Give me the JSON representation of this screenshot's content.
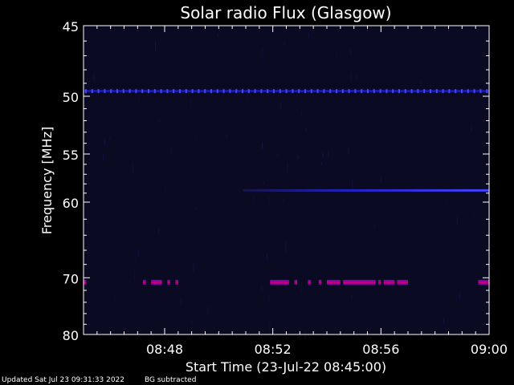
{
  "chart_data": {
    "type": "heatmap",
    "title": "Solar radio Flux (Glasgow)",
    "xlabel": "Start Time (23-Jul-22 08:45:00)",
    "ylabel": "Frequency [MHz]",
    "x_tick_labels": [
      "08:48",
      "08:52",
      "08:56",
      "09:00"
    ],
    "x_tick_minutes": [
      3,
      7,
      11,
      15
    ],
    "x_range_minutes": [
      0,
      15
    ],
    "y_tick_labels": [
      "45",
      "50",
      "55",
      "60",
      "70",
      "80"
    ],
    "y_ticks": [
      45,
      50,
      55,
      60,
      70,
      80
    ],
    "y_range": [
      45,
      80
    ],
    "y_scale": "reciprocal",
    "colors": {
      "background": "#000000",
      "field": "#0a0a22",
      "faint": "#15154a",
      "mid": "#2222cc",
      "strong": "#4444ff",
      "rfi": "#8800aa",
      "rfi_core": "#cc0066",
      "axis": "#ffffff"
    },
    "features": [
      {
        "type": "interference",
        "freq_mhz": 49.6,
        "x_range_minutes": [
          0,
          15
        ],
        "intensity": "strong"
      },
      {
        "type": "emission",
        "freq_mhz": 58.7,
        "x_range_minutes": [
          5.9,
          15
        ],
        "intensity": "rising"
      },
      {
        "type": "interference",
        "freq_mhz": 70.7,
        "segments_minutes": [
          [
            0,
            0.1
          ],
          [
            2.2,
            2.3
          ],
          [
            2.5,
            2.9
          ],
          [
            3.1,
            3.2
          ],
          [
            3.4,
            3.5
          ],
          [
            6.9,
            7.6
          ],
          [
            7.8,
            7.9
          ],
          [
            8.3,
            8.4
          ],
          [
            8.7,
            8.8
          ],
          [
            9.0,
            9.5
          ],
          [
            9.6,
            10.8
          ],
          [
            10.9,
            11.0
          ],
          [
            11.1,
            11.5
          ],
          [
            11.6,
            12.0
          ],
          [
            14.6,
            15
          ]
        ]
      }
    ]
  },
  "footer": {
    "updated": "Updated Sat Jul 23 09:31:33 2022",
    "note": "BG subtracted"
  }
}
